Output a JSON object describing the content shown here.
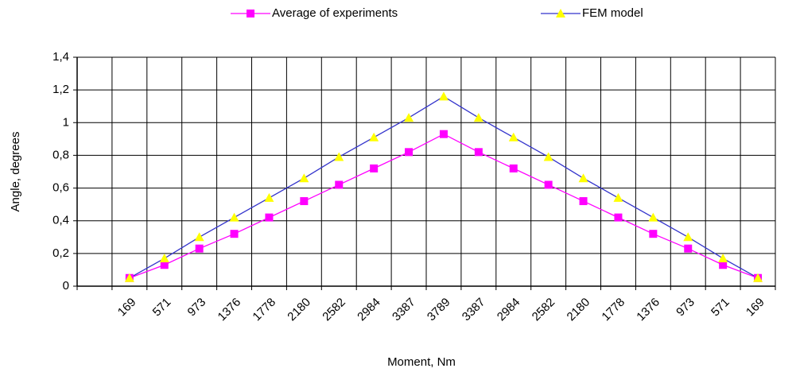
{
  "chart_data": {
    "type": "line",
    "x_label": "Moment, Nm",
    "y_label": "Angle, degrees",
    "categories": [
      null,
      "169",
      "571",
      "973",
      "1376",
      "1778",
      "2180",
      "2582",
      "2984",
      "3387",
      "3789",
      "3387",
      "2984",
      "2582",
      "2180",
      "1778",
      "1376",
      "973",
      "571",
      "169"
    ],
    "series": [
      {
        "name": "Average of experiments",
        "color": "#ff00ff",
        "marker": "square",
        "values": [
          null,
          0.05,
          0.13,
          0.23,
          0.32,
          0.42,
          0.52,
          0.62,
          0.72,
          0.82,
          0.93,
          0.82,
          0.72,
          0.62,
          0.52,
          0.42,
          0.32,
          0.23,
          0.13,
          0.05
        ]
      },
      {
        "name": "FEM model",
        "color": "#3333cc",
        "marker": "triangle",
        "marker_color": "#ffff00",
        "values": [
          null,
          0.05,
          0.17,
          0.3,
          0.42,
          0.54,
          0.66,
          0.79,
          0.91,
          1.03,
          1.16,
          1.03,
          0.91,
          0.79,
          0.66,
          0.54,
          0.42,
          0.3,
          0.17,
          0.05
        ]
      }
    ],
    "ylim": [
      0,
      1.4
    ],
    "yticks": [
      0,
      {
        "value": 0.2,
        "label": "0,2"
      },
      {
        "value": 0.4,
        "label": "0,4"
      },
      {
        "value": 0.6,
        "label": "0,6"
      },
      {
        "value": 0.8,
        "label": "0,8"
      },
      1,
      {
        "value": 1.2,
        "label": "1,2"
      },
      {
        "value": 1.4,
        "label": "1,4"
      }
    ],
    "grid": true,
    "legend": "top"
  }
}
